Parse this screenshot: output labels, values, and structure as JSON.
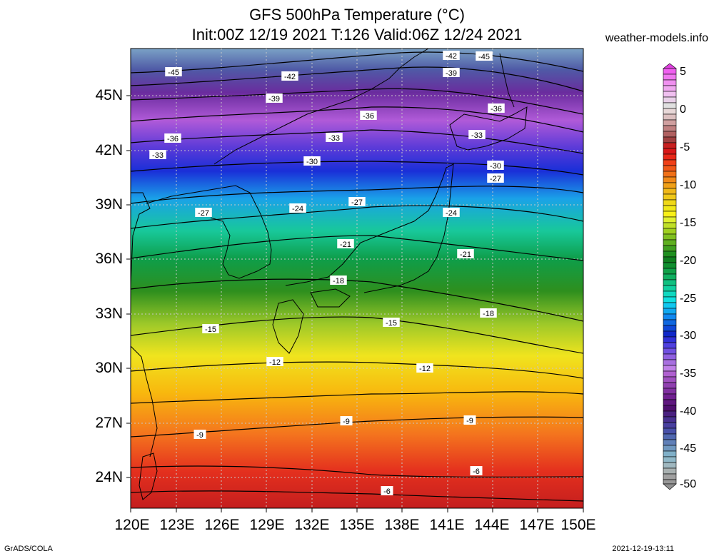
{
  "title": {
    "line1": "GFS 500hPa Temperature (°C)",
    "line2": "Init:00Z 12/19 2021 T:126 Valid:06Z 12/24 2021"
  },
  "website": "weather-models.info",
  "credit": "GrADS/COLA",
  "timestamp": "2021-12-19-13:11",
  "lat_axis": [
    "45N",
    "42N",
    "39N",
    "36N",
    "33N",
    "30N",
    "27N",
    "24N"
  ],
  "lon_axis": [
    "120E",
    "123E",
    "126E",
    "129E",
    "132E",
    "135E",
    "138E",
    "141E",
    "144E",
    "147E",
    "150E"
  ],
  "colorbar_labels": [
    "5",
    "0",
    "-5",
    "-10",
    "-15",
    "-20",
    "-25",
    "-30",
    "-35",
    "-40",
    "-45",
    "-50"
  ],
  "contours": [
    {
      "value": "-45",
      "labels": [
        "-45",
        "-45"
      ]
    },
    {
      "value": "-42",
      "labels": [
        "-42",
        "-42"
      ]
    },
    {
      "value": "-39",
      "labels": [
        "-39",
        "-39"
      ]
    },
    {
      "value": "-36",
      "labels": [
        "-36",
        "-36",
        "-36"
      ]
    },
    {
      "value": "-33",
      "labels": [
        "-33",
        "-33",
        "-33"
      ]
    },
    {
      "value": "-30",
      "labels": [
        "-30",
        "-30"
      ]
    },
    {
      "value": "-27",
      "labels": [
        "-27",
        "-27",
        "-27"
      ]
    },
    {
      "value": "-24",
      "labels": [
        "-24",
        "-24"
      ]
    },
    {
      "value": "-21",
      "labels": [
        "-21",
        "-21"
      ]
    },
    {
      "value": "-18",
      "labels": [
        "-18",
        "-18"
      ]
    },
    {
      "value": "-15",
      "labels": [
        "-15",
        "-15"
      ]
    },
    {
      "value": "-12",
      "labels": [
        "-12",
        "-12"
      ]
    },
    {
      "value": "-9",
      "labels": [
        "-9",
        "-9",
        "-9"
      ]
    },
    {
      "value": "-6",
      "labels": [
        "-6",
        "-6"
      ]
    }
  ]
}
